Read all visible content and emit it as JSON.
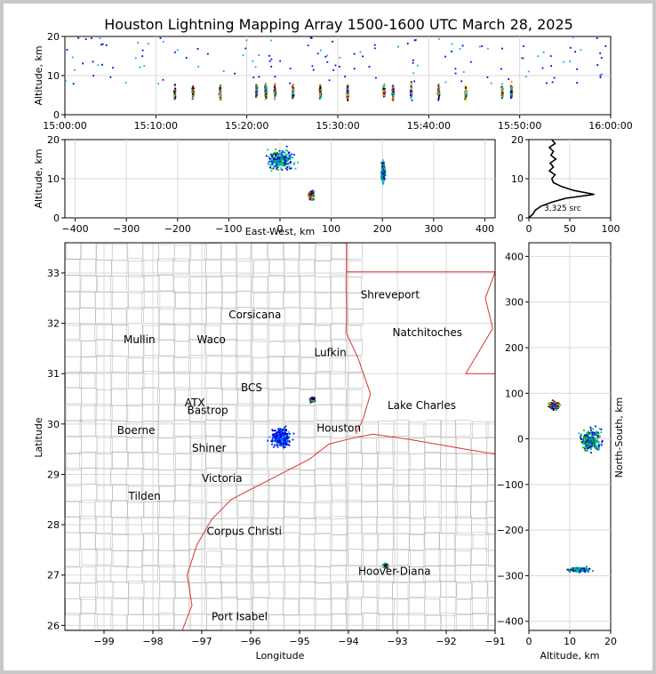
{
  "title": "Houston Lightning Mapping Array 1500-1600 UTC March 28, 2025",
  "colors": {
    "map_border": "#dd3333",
    "county": "#bbbbbb",
    "grid": "#d8d8d8",
    "station_orange": "#ff8c42",
    "station_green": "#66cc33",
    "station_blue": "#2222cc",
    "station_maroon": "#880000",
    "station_gold": "#e6a817"
  },
  "chart_data": [
    {
      "id": "time_height",
      "type": "scatter",
      "xlabel": "",
      "ylabel": "Altitude, km",
      "x_ticks": [
        "15:00:00",
        "15:10:00",
        "15:20:00",
        "15:30:00",
        "15:40:00",
        "15:50:00",
        "16:00:00"
      ],
      "xlim": [
        0,
        60
      ],
      "ylim": [
        0,
        20
      ],
      "y_ticks": [
        0,
        10,
        20
      ],
      "clusters_minutes": [
        12,
        14,
        17,
        21,
        22,
        23,
        25,
        28,
        31,
        35,
        36,
        38,
        41,
        44,
        48,
        49
      ]
    },
    {
      "id": "east_west_altitude",
      "type": "scatter",
      "xlabel": "East-West, km",
      "ylabel": "Altitude, km",
      "xlim": [
        -420,
        420
      ],
      "ylim": [
        0,
        20
      ],
      "x_ticks": [
        -400,
        -300,
        -200,
        -100,
        0,
        100,
        200,
        300,
        400
      ],
      "y_ticks": [
        0,
        10,
        20
      ],
      "clusters": [
        {
          "x": 60,
          "alt": 6,
          "spread_x": 8,
          "spread_alt": 2
        },
        {
          "x": 200,
          "alt": 12,
          "spread_x": 6,
          "spread_alt": 4
        },
        {
          "x": 0,
          "alt": 15,
          "spread_x": 40,
          "spread_alt": 4
        }
      ]
    },
    {
      "id": "altitude_histogram",
      "type": "line",
      "xlim": [
        0,
        100
      ],
      "ylim": [
        0,
        20
      ],
      "x_ticks": [
        0,
        50,
        100
      ],
      "y_ticks": [
        0,
        10,
        20
      ],
      "annotation": "3,325 src",
      "profile": [
        [
          0,
          0
        ],
        [
          5,
          1
        ],
        [
          8,
          2
        ],
        [
          15,
          3
        ],
        [
          28,
          4
        ],
        [
          45,
          5
        ],
        [
          80,
          6
        ],
        [
          55,
          7
        ],
        [
          40,
          8
        ],
        [
          30,
          9
        ],
        [
          28,
          10
        ],
        [
          32,
          11
        ],
        [
          25,
          12
        ],
        [
          30,
          13
        ],
        [
          26,
          14
        ],
        [
          33,
          15
        ],
        [
          27,
          16
        ],
        [
          30,
          17
        ],
        [
          25,
          18
        ],
        [
          32,
          19
        ],
        [
          28,
          20
        ]
      ]
    },
    {
      "id": "plan_view",
      "type": "map",
      "xlabel": "Longitude",
      "ylabel": "Latitude",
      "xlim": [
        -99.8,
        -91
      ],
      "ylim": [
        25.9,
        33.6
      ],
      "x_ticks": [
        -99,
        -98,
        -97,
        -96,
        -95,
        -94,
        -93,
        -92,
        -91
      ],
      "y_ticks": [
        26,
        27,
        28,
        29,
        30,
        31,
        32,
        33
      ],
      "cities": [
        {
          "name": "Shreveport",
          "lon": -93.75,
          "lat": 32.5
        },
        {
          "name": "Corsicana",
          "lon": -96.45,
          "lat": 32.1
        },
        {
          "name": "Natchitoches",
          "lon": -93.1,
          "lat": 31.75
        },
        {
          "name": "Mullin",
          "lon": -98.6,
          "lat": 31.6
        },
        {
          "name": "Waco",
          "lon": -97.1,
          "lat": 31.6
        },
        {
          "name": "Lufkin",
          "lon": -94.7,
          "lat": 31.35
        },
        {
          "name": "Boerne",
          "lon": -98.73,
          "lat": 29.8
        },
        {
          "name": "Bastrop",
          "lon": -97.3,
          "lat": 30.2
        },
        {
          "name": "Lake Charles",
          "lon": -93.2,
          "lat": 30.3
        },
        {
          "name": "Shiner",
          "lon": -97.2,
          "lat": 29.45
        },
        {
          "name": "Victoria",
          "lon": -97.0,
          "lat": 28.85
        },
        {
          "name": "Tilden",
          "lon": -98.5,
          "lat": 28.5
        },
        {
          "name": "Corpus Christi",
          "lon": -96.9,
          "lat": 27.8
        },
        {
          "name": "Hoover-Diana",
          "lon": -93.8,
          "lat": 27.0
        },
        {
          "name": "Port Isabel",
          "lon": -96.8,
          "lat": 26.1
        }
      ],
      "labels": [
        {
          "text": "ATX",
          "lon": -97.35,
          "lat": 30.35
        },
        {
          "text": "BCS",
          "lon": -96.2,
          "lat": 30.65
        },
        {
          "text": "Houston",
          "lon": -94.65,
          "lat": 29.85
        }
      ],
      "clusters": [
        {
          "lon": -94.75,
          "lat": 30.5,
          "size": 0.08
        },
        {
          "lon": -95.4,
          "lat": 29.75,
          "size": 0.3
        },
        {
          "lon": -93.25,
          "lat": 27.2,
          "size": 0.08
        }
      ]
    },
    {
      "id": "north_south_altitude",
      "type": "scatter",
      "xlabel": "Altitude, km",
      "ylabel": "North-South, km",
      "xlim": [
        0,
        20
      ],
      "ylim": [
        -420,
        430
      ],
      "x_ticks": [
        0,
        10,
        20
      ],
      "y_ticks": [
        -400,
        -300,
        -200,
        -100,
        0,
        100,
        200,
        300,
        400
      ],
      "clusters": [
        {
          "alt": 6,
          "y": 75,
          "spread_alt": 2,
          "spread_y": 15
        },
        {
          "alt": 12,
          "y": -285,
          "spread_alt": 4,
          "spread_y": 8
        },
        {
          "alt": 15,
          "y": 0,
          "spread_alt": 4,
          "spread_y": 40
        }
      ]
    }
  ]
}
